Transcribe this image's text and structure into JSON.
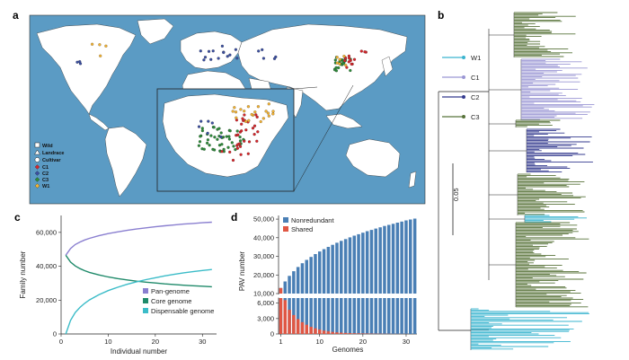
{
  "panels": {
    "a": "a",
    "b": "b",
    "c": "c",
    "d": "d"
  },
  "map": {
    "legend_shapes": [
      "Wild",
      "Landrace",
      "Cultivar"
    ],
    "legend_groups": [
      {
        "label": "C1",
        "color": "#d6262b"
      },
      {
        "label": "C2",
        "color": "#3b4fa0"
      },
      {
        "label": "C3",
        "color": "#2e8b3a"
      },
      {
        "label": "W1",
        "color": "#f2b233"
      }
    ],
    "ocean_color": "#5b9bc4"
  },
  "tree": {
    "legend": [
      {
        "label": "W1",
        "color": "#3ab4cf"
      },
      {
        "label": "C1",
        "color": "#9b97d4"
      },
      {
        "label": "C2",
        "color": "#343b8f"
      },
      {
        "label": "C3",
        "color": "#58733a"
      }
    ],
    "scale_label": "0.05"
  },
  "chart_data": [
    {
      "type": "line",
      "panel": "c",
      "xlabel": "Individual number",
      "ylabel": "Family number",
      "xlim": [
        0,
        33
      ],
      "ylim": [
        0,
        70000
      ],
      "xticks": [
        "0",
        "10",
        "20",
        "30"
      ],
      "yticks": [
        "0",
        "20,000",
        "40,000",
        "60,000"
      ],
      "x": [
        1,
        2,
        3,
        4,
        5,
        6,
        8,
        10,
        12,
        14,
        16,
        18,
        20,
        22,
        24,
        26,
        28,
        30,
        32
      ],
      "series": [
        {
          "name": "Pan-genome",
          "color": "#8a7fd0",
          "values": [
            46500,
            50500,
            52800,
            54300,
            55500,
            56500,
            58000,
            59300,
            60300,
            61200,
            62000,
            62700,
            63300,
            63900,
            64400,
            64900,
            65300,
            65700,
            66000
          ]
        },
        {
          "name": "Core genome",
          "color": "#1f8a6a",
          "values": [
            46500,
            42500,
            40200,
            38600,
            37400,
            36400,
            34900,
            33700,
            32700,
            31900,
            31200,
            30600,
            30100,
            29600,
            29200,
            28800,
            28500,
            28200,
            27900
          ]
        },
        {
          "name": "Dispensable genome",
          "color": "#3bbcc8",
          "values": [
            0,
            8000,
            12600,
            15700,
            18100,
            20100,
            23100,
            25600,
            27600,
            29300,
            30800,
            32100,
            33200,
            34300,
            35200,
            36100,
            36800,
            37500,
            38100
          ]
        }
      ]
    },
    {
      "type": "bar",
      "panel": "d",
      "xlabel": "Genomes",
      "ylabel": "PAV number",
      "xticks": [
        "1",
        "10",
        "20",
        "30"
      ],
      "yticks_upper": [
        "10,000",
        "20,000",
        "30,000",
        "40,000",
        "50,000"
      ],
      "yticks_lower": [
        "0",
        "3,000",
        "6,000"
      ],
      "series": [
        {
          "name": "Nonredundant",
          "color": "#4a7fb5",
          "values": [
            13000,
            16500,
            19500,
            22000,
            24300,
            26300,
            28100,
            29700,
            31200,
            32600,
            33900,
            35100,
            36200,
            37300,
            38300,
            39300,
            40200,
            41100,
            41900,
            42700,
            43500,
            44200,
            44900,
            45600,
            46300,
            46900,
            47500,
            48100,
            48700,
            49300,
            49800,
            50300
          ]
        },
        {
          "name": "Shared",
          "color": "#e05744",
          "values": [
            13000,
            6600,
            4700,
            3700,
            2900,
            2300,
            1800,
            1400,
            1100,
            850,
            650,
            500,
            400,
            320,
            260,
            210,
            170,
            140,
            120,
            100,
            85,
            70,
            60,
            50,
            40,
            32,
            26,
            20,
            15,
            10,
            6,
            3
          ]
        }
      ]
    }
  ]
}
